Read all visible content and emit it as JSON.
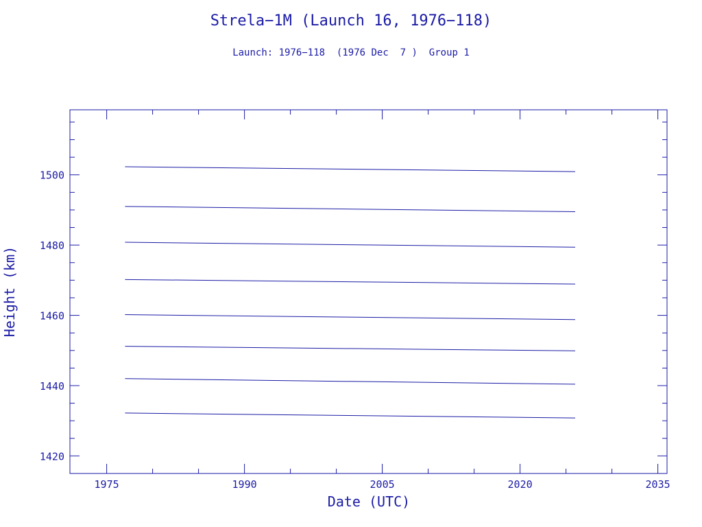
{
  "colors": {
    "ink": "#1a1aa6",
    "background": "#ffffff"
  },
  "chart_data": {
    "type": "line",
    "title": "Strela−1M (Launch 16, 1976−118)",
    "subtitle": "Launch: 1976−118  (1976 Dec  7 )  Group 1",
    "xlabel": "Date (UTC)",
    "ylabel": "Height (km)",
    "xlim": [
      1971.0,
      2036.0
    ],
    "ylim": [
      1415.0,
      1518.5
    ],
    "xticks": [
      1975,
      1990,
      2005,
      2020,
      2035
    ],
    "yticks": [
      1420,
      1440,
      1460,
      1480,
      1500
    ],
    "x_minor_step": 5,
    "y_minor_step": 5,
    "grid": false,
    "x_start": 1977.0,
    "x_end": 2026.0,
    "series": [
      {
        "start": 1502.3,
        "end": 1500.9
      },
      {
        "start": 1491.0,
        "end": 1489.5
      },
      {
        "start": 1480.8,
        "end": 1479.4
      },
      {
        "start": 1470.2,
        "end": 1468.9
      },
      {
        "start": 1460.2,
        "end": 1458.8
      },
      {
        "start": 1451.2,
        "end": 1449.9
      },
      {
        "start": 1442.0,
        "end": 1440.4
      },
      {
        "start": 1432.2,
        "end": 1430.8
      }
    ]
  }
}
